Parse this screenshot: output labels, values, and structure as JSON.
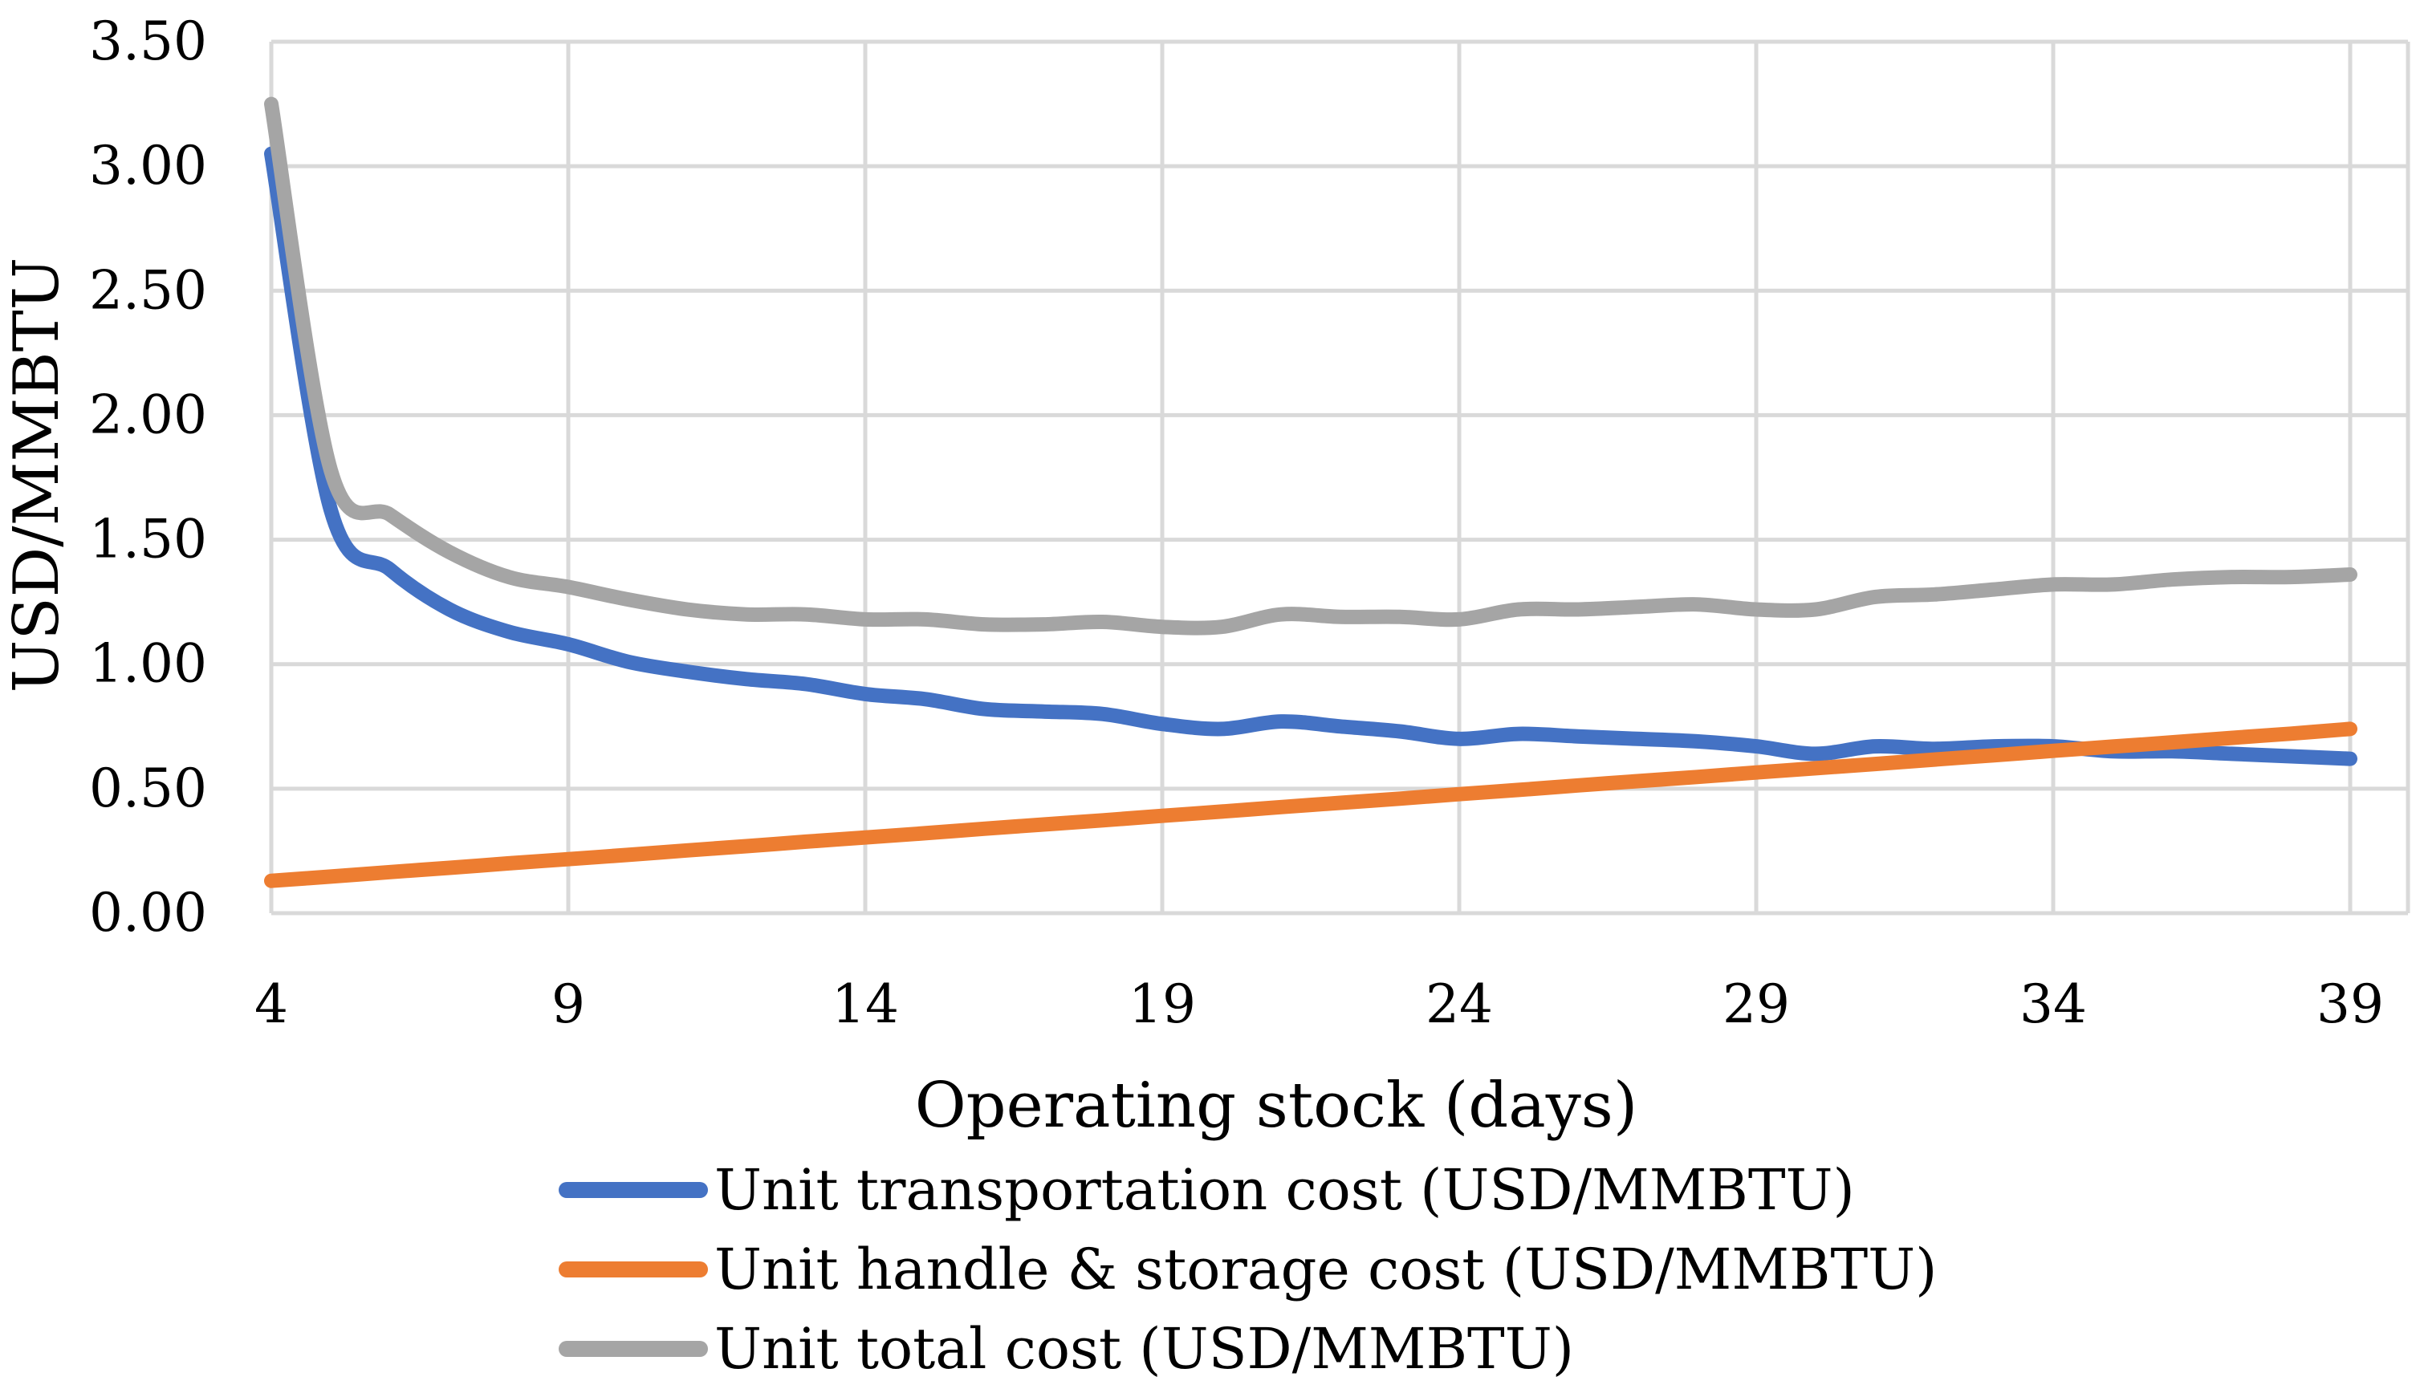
{
  "chart_data": {
    "type": "line",
    "title": "",
    "xlabel": "Operating stock (days)",
    "ylabel": "USD/MMBTU",
    "xlim": [
      4,
      40
    ],
    "ylim": [
      0,
      3.5
    ],
    "x_ticks": [
      4,
      9,
      14,
      19,
      24,
      29,
      34,
      39
    ],
    "x_tick_labels": [
      "4",
      "9",
      "14",
      "19",
      "24",
      "29",
      "34",
      "39"
    ],
    "y_ticks": [
      0,
      0.5,
      1,
      1.5,
      2,
      2.5,
      3,
      3.5
    ],
    "y_tick_labels": [
      "0.00",
      "0.50",
      "1.00",
      "1.50",
      "2.00",
      "2.50",
      "3.00",
      "3.50"
    ],
    "grid": true,
    "legend_position": "bottom",
    "x": [
      4,
      5,
      6,
      7,
      8,
      9,
      10,
      11,
      12,
      13,
      14,
      15,
      16,
      17,
      18,
      19,
      20,
      21,
      22,
      23,
      24,
      25,
      26,
      27,
      28,
      29,
      30,
      31,
      32,
      33,
      34,
      35,
      36,
      37,
      38,
      39
    ],
    "series": [
      {
        "name": "Unit transportation cost (USD/MMBTU)",
        "color": "#4472C4",
        "values": [
          3.05,
          1.62,
          1.38,
          1.22,
          1.13,
          1.08,
          1.01,
          0.97,
          0.94,
          0.92,
          0.88,
          0.86,
          0.82,
          0.81,
          0.8,
          0.76,
          0.74,
          0.77,
          0.75,
          0.73,
          0.7,
          0.72,
          0.71,
          0.7,
          0.69,
          0.67,
          0.64,
          0.67,
          0.66,
          0.67,
          0.67,
          0.65,
          0.65,
          0.64,
          0.63,
          0.62
        ]
      },
      {
        "name": "Unit handle & storage cost (USD/MMBTU)",
        "color": "#ED7D31",
        "values": [
          0.13,
          0.147,
          0.165,
          0.182,
          0.2,
          0.217,
          0.234,
          0.252,
          0.269,
          0.287,
          0.304,
          0.321,
          0.339,
          0.356,
          0.373,
          0.391,
          0.408,
          0.426,
          0.443,
          0.46,
          0.478,
          0.495,
          0.513,
          0.53,
          0.547,
          0.565,
          0.582,
          0.599,
          0.617,
          0.634,
          0.652,
          0.669,
          0.686,
          0.704,
          0.721,
          0.74
        ]
      },
      {
        "name": "Unit total cost (USD/MMBTU)",
        "color": "#A5A5A5",
        "values": [
          3.25,
          1.78,
          1.6,
          1.45,
          1.35,
          1.31,
          1.26,
          1.22,
          1.2,
          1.2,
          1.18,
          1.18,
          1.16,
          1.16,
          1.17,
          1.15,
          1.15,
          1.2,
          1.19,
          1.19,
          1.18,
          1.22,
          1.22,
          1.23,
          1.24,
          1.22,
          1.22,
          1.27,
          1.28,
          1.3,
          1.32,
          1.32,
          1.34,
          1.35,
          1.35,
          1.36
        ]
      }
    ]
  }
}
